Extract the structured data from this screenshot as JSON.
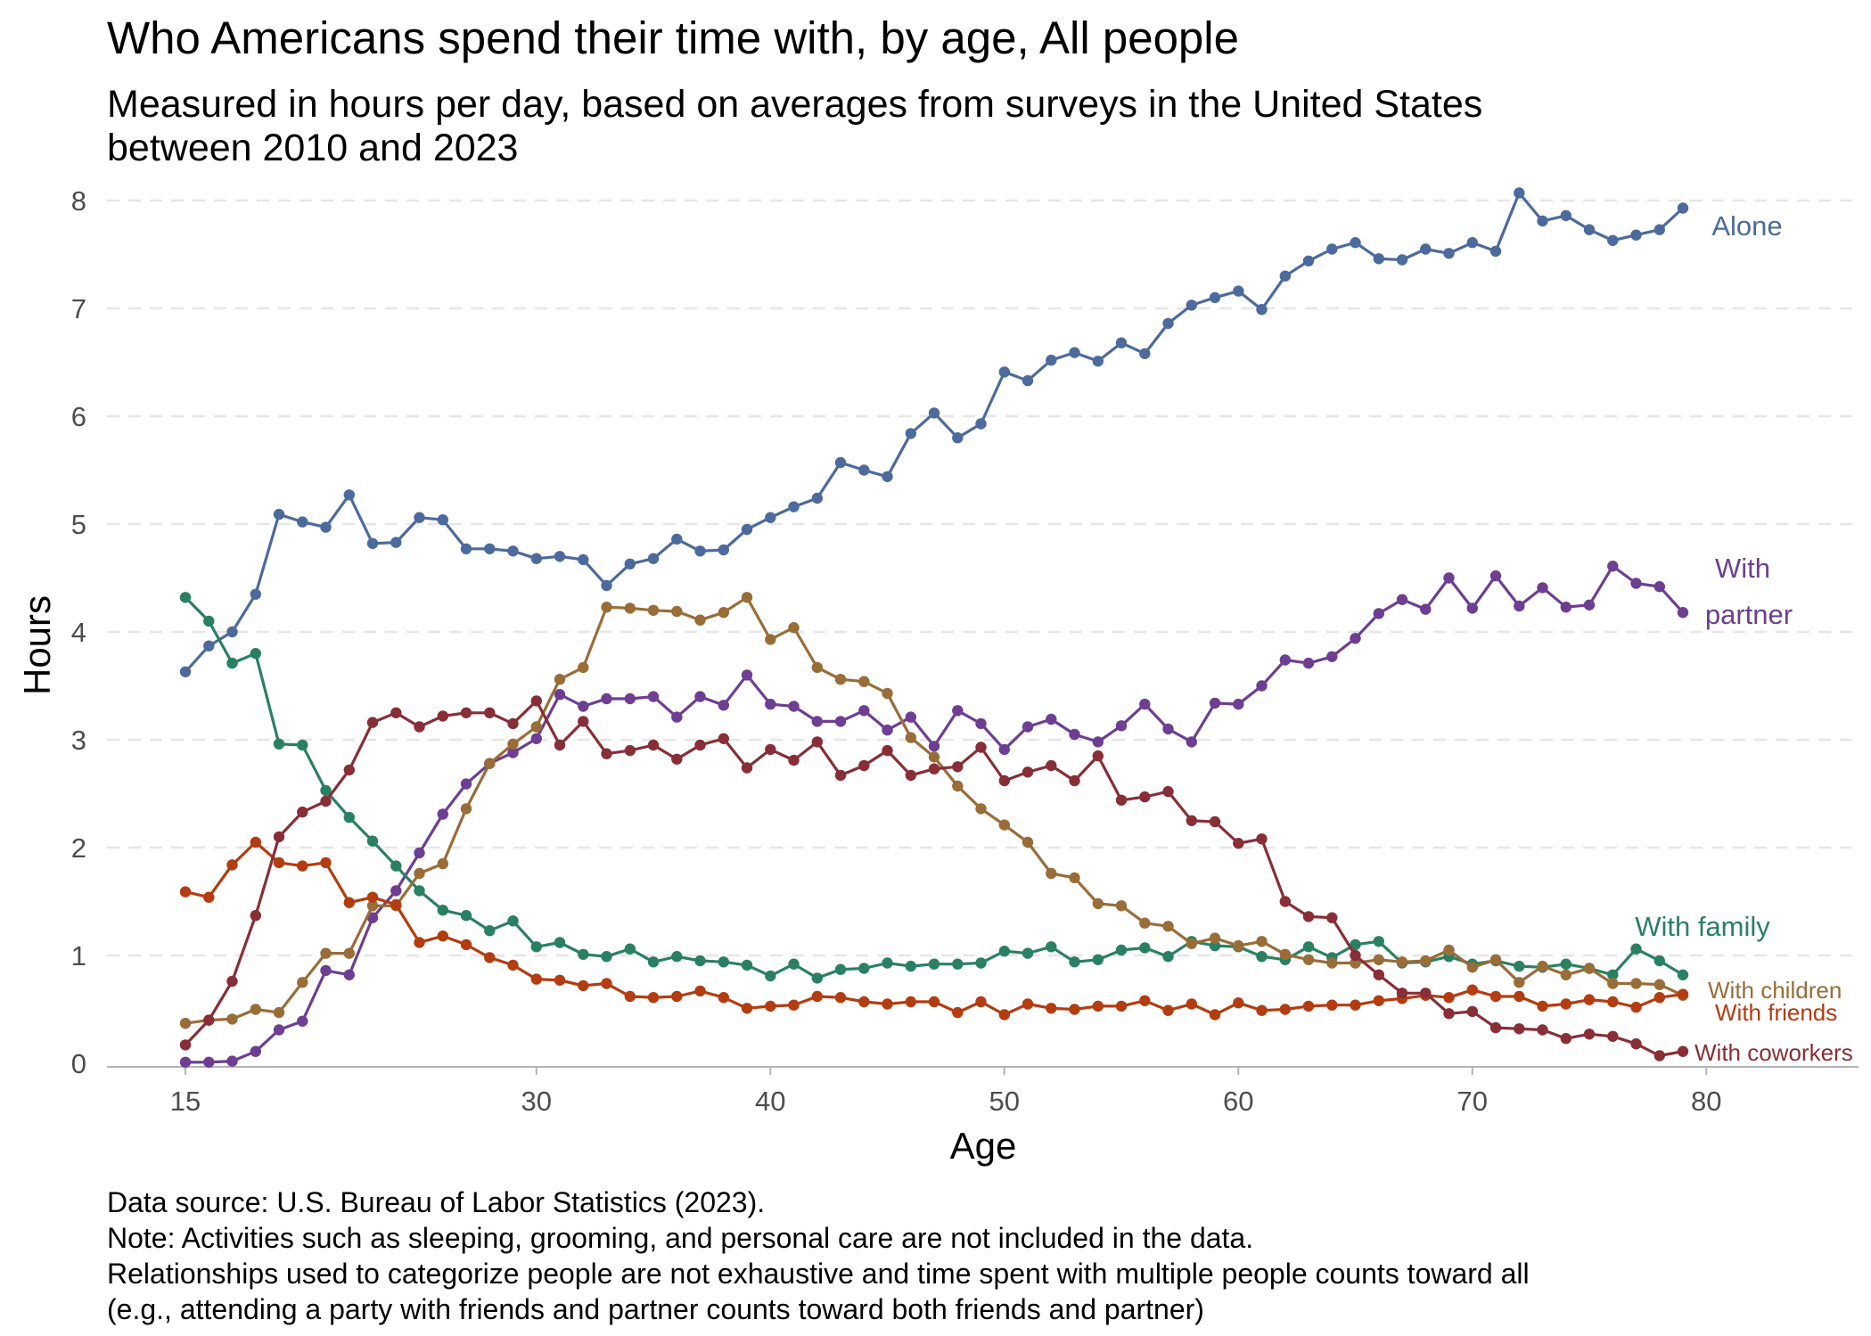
{
  "chart_data": {
    "type": "line",
    "title": "Who Americans spend their time with, by age, All people",
    "subtitle_lines": [
      "Measured in hours per day, based on averages from surveys in the United States",
      "between 2010 and 2023"
    ],
    "xlabel": "Age",
    "ylabel": "Hours",
    "xlim": [
      15,
      79
    ],
    "ylim": [
      0,
      8
    ],
    "x_ticks": [
      15,
      30,
      40,
      50,
      60,
      70,
      80
    ],
    "y_ticks": [
      0,
      1,
      2,
      3,
      4,
      5,
      6,
      7,
      8
    ],
    "grid": true,
    "x_start": 15,
    "series": [
      {
        "name": "Alone",
        "label_lines": [
          "Alone"
        ],
        "color": "#4c6a9c",
        "values": [
          3.63,
          3.87,
          4.0,
          4.35,
          5.09,
          5.02,
          4.97,
          5.27,
          4.82,
          4.83,
          5.06,
          5.04,
          4.77,
          4.77,
          4.75,
          4.68,
          4.7,
          4.67,
          4.43,
          4.63,
          4.68,
          4.86,
          4.75,
          4.76,
          4.95,
          5.06,
          5.16,
          5.24,
          5.57,
          5.5,
          5.44,
          5.84,
          6.03,
          5.8,
          5.93,
          6.41,
          6.33,
          6.52,
          6.59,
          6.51,
          6.68,
          6.58,
          6.86,
          7.03,
          7.1,
          7.16,
          6.99,
          7.3,
          7.44,
          7.55,
          7.61,
          7.46,
          7.45,
          7.55,
          7.51,
          7.61,
          7.53,
          8.07,
          7.81,
          7.86,
          7.73,
          7.63,
          7.68,
          7.73,
          7.93
        ]
      },
      {
        "name": "With partner",
        "label_lines": [
          "With",
          "partner"
        ],
        "color": "#6d3e91",
        "values": [
          0.01,
          0.01,
          0.02,
          0.11,
          0.31,
          0.39,
          0.86,
          0.82,
          1.35,
          1.6,
          1.95,
          2.31,
          2.59,
          2.78,
          2.88,
          3.01,
          3.42,
          3.31,
          3.38,
          3.38,
          3.4,
          3.21,
          3.4,
          3.32,
          3.6,
          3.33,
          3.31,
          3.17,
          3.17,
          3.27,
          3.09,
          3.21,
          2.94,
          3.27,
          3.15,
          2.91,
          3.12,
          3.19,
          3.05,
          2.98,
          3.13,
          3.33,
          3.1,
          2.98,
          3.34,
          3.33,
          3.5,
          3.74,
          3.71,
          3.77,
          3.94,
          4.17,
          4.3,
          4.21,
          4.5,
          4.22,
          4.52,
          4.24,
          4.41,
          4.23,
          4.25,
          4.61,
          4.45,
          4.42,
          4.18
        ]
      },
      {
        "name": "With family",
        "label_lines": [
          "With family"
        ],
        "color": "#2a8062",
        "values": [
          4.32,
          4.1,
          3.71,
          3.8,
          2.96,
          2.95,
          2.53,
          2.28,
          2.06,
          1.83,
          1.6,
          1.42,
          1.37,
          1.23,
          1.32,
          1.08,
          1.12,
          1.01,
          0.99,
          1.06,
          0.94,
          0.99,
          0.95,
          0.94,
          0.91,
          0.81,
          0.92,
          0.79,
          0.87,
          0.88,
          0.93,
          0.9,
          0.92,
          0.92,
          0.93,
          1.04,
          1.02,
          1.08,
          0.94,
          0.96,
          1.05,
          1.07,
          0.99,
          1.13,
          1.09,
          1.08,
          0.99,
          0.96,
          1.08,
          0.98,
          1.1,
          1.13,
          0.93,
          0.94,
          0.99,
          0.92,
          0.95,
          0.9,
          0.89,
          0.92,
          0.88,
          0.82,
          1.06,
          0.95,
          0.82
        ]
      },
      {
        "name": "With children",
        "label_lines": [
          "With children"
        ],
        "color": "#996d38",
        "values": [
          0.37,
          0.4,
          0.41,
          0.5,
          0.47,
          0.75,
          1.02,
          1.02,
          1.46,
          1.46,
          1.76,
          1.85,
          2.36,
          2.78,
          2.96,
          3.12,
          3.56,
          3.67,
          4.23,
          4.22,
          4.2,
          4.19,
          4.11,
          4.18,
          4.32,
          3.93,
          4.04,
          3.67,
          3.56,
          3.54,
          3.43,
          3.02,
          2.84,
          2.57,
          2.36,
          2.21,
          2.05,
          1.76,
          1.72,
          1.48,
          1.46,
          1.3,
          1.27,
          1.11,
          1.16,
          1.09,
          1.13,
          1.01,
          0.96,
          0.93,
          0.93,
          0.96,
          0.94,
          0.95,
          1.05,
          0.89,
          0.96,
          0.75,
          0.9,
          0.82,
          0.88,
          0.74,
          0.74,
          0.73,
          0.63
        ]
      },
      {
        "name": "With friends",
        "label_lines": [
          "With friends"
        ],
        "color": "#b33c10",
        "values": [
          1.59,
          1.54,
          1.84,
          2.05,
          1.86,
          1.83,
          1.86,
          1.49,
          1.54,
          1.47,
          1.12,
          1.18,
          1.1,
          0.98,
          0.91,
          0.78,
          0.77,
          0.72,
          0.74,
          0.62,
          0.61,
          0.62,
          0.67,
          0.61,
          0.51,
          0.53,
          0.54,
          0.62,
          0.61,
          0.57,
          0.55,
          0.57,
          0.57,
          0.47,
          0.57,
          0.45,
          0.55,
          0.51,
          0.5,
          0.53,
          0.53,
          0.58,
          0.49,
          0.55,
          0.45,
          0.56,
          0.49,
          0.5,
          0.53,
          0.54,
          0.54,
          0.58,
          0.6,
          0.63,
          0.61,
          0.68,
          0.62,
          0.62,
          0.53,
          0.55,
          0.59,
          0.57,
          0.52,
          0.61,
          0.64
        ]
      },
      {
        "name": "With coworkers",
        "label_lines": [
          "With coworkers"
        ],
        "color": "#882e37",
        "values": [
          0.17,
          0.4,
          0.76,
          1.37,
          2.1,
          2.33,
          2.43,
          2.72,
          3.16,
          3.25,
          3.12,
          3.22,
          3.25,
          3.25,
          3.15,
          3.36,
          2.95,
          3.17,
          2.87,
          2.9,
          2.95,
          2.82,
          2.95,
          3.01,
          2.74,
          2.91,
          2.81,
          2.98,
          2.67,
          2.76,
          2.9,
          2.67,
          2.73,
          2.75,
          2.93,
          2.62,
          2.7,
          2.76,
          2.62,
          2.85,
          2.44,
          2.47,
          2.52,
          2.25,
          2.24,
          2.04,
          2.08,
          1.5,
          1.36,
          1.35,
          1.0,
          0.82,
          0.65,
          0.65,
          0.46,
          0.48,
          0.33,
          0.32,
          0.31,
          0.23,
          0.27,
          0.25,
          0.18,
          0.07,
          0.11
        ]
      }
    ]
  },
  "caption_lines": [
    "Data source: U.S. Bureau of Labor Statistics (2023).",
    "Note: Activities such as sleeping, grooming, and personal care are not included in the data.",
    "Relationships used to categorize people are not exhaustive and time spent with multiple people counts toward all",
    "(e.g., attending a party with friends and partner counts toward both friends and partner)"
  ]
}
